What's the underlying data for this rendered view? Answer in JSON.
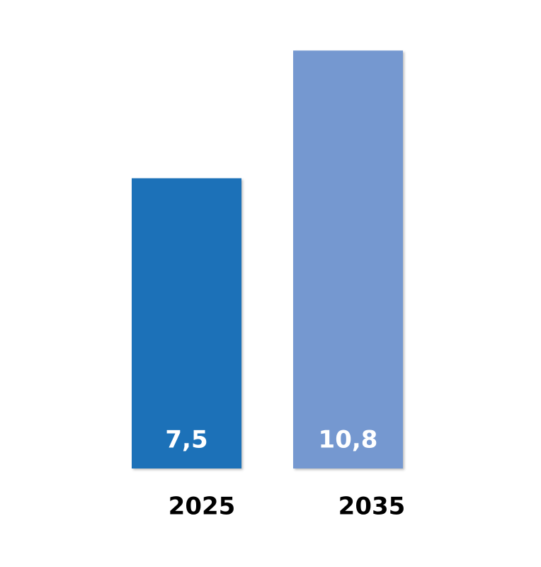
{
  "chart_data": {
    "type": "bar",
    "categories": [
      "2025",
      "2035"
    ],
    "values": [
      7.5,
      10.8
    ],
    "value_labels": [
      "7,5",
      "10,8"
    ],
    "colors": [
      "#1e71b8",
      "#7498d0"
    ]
  }
}
